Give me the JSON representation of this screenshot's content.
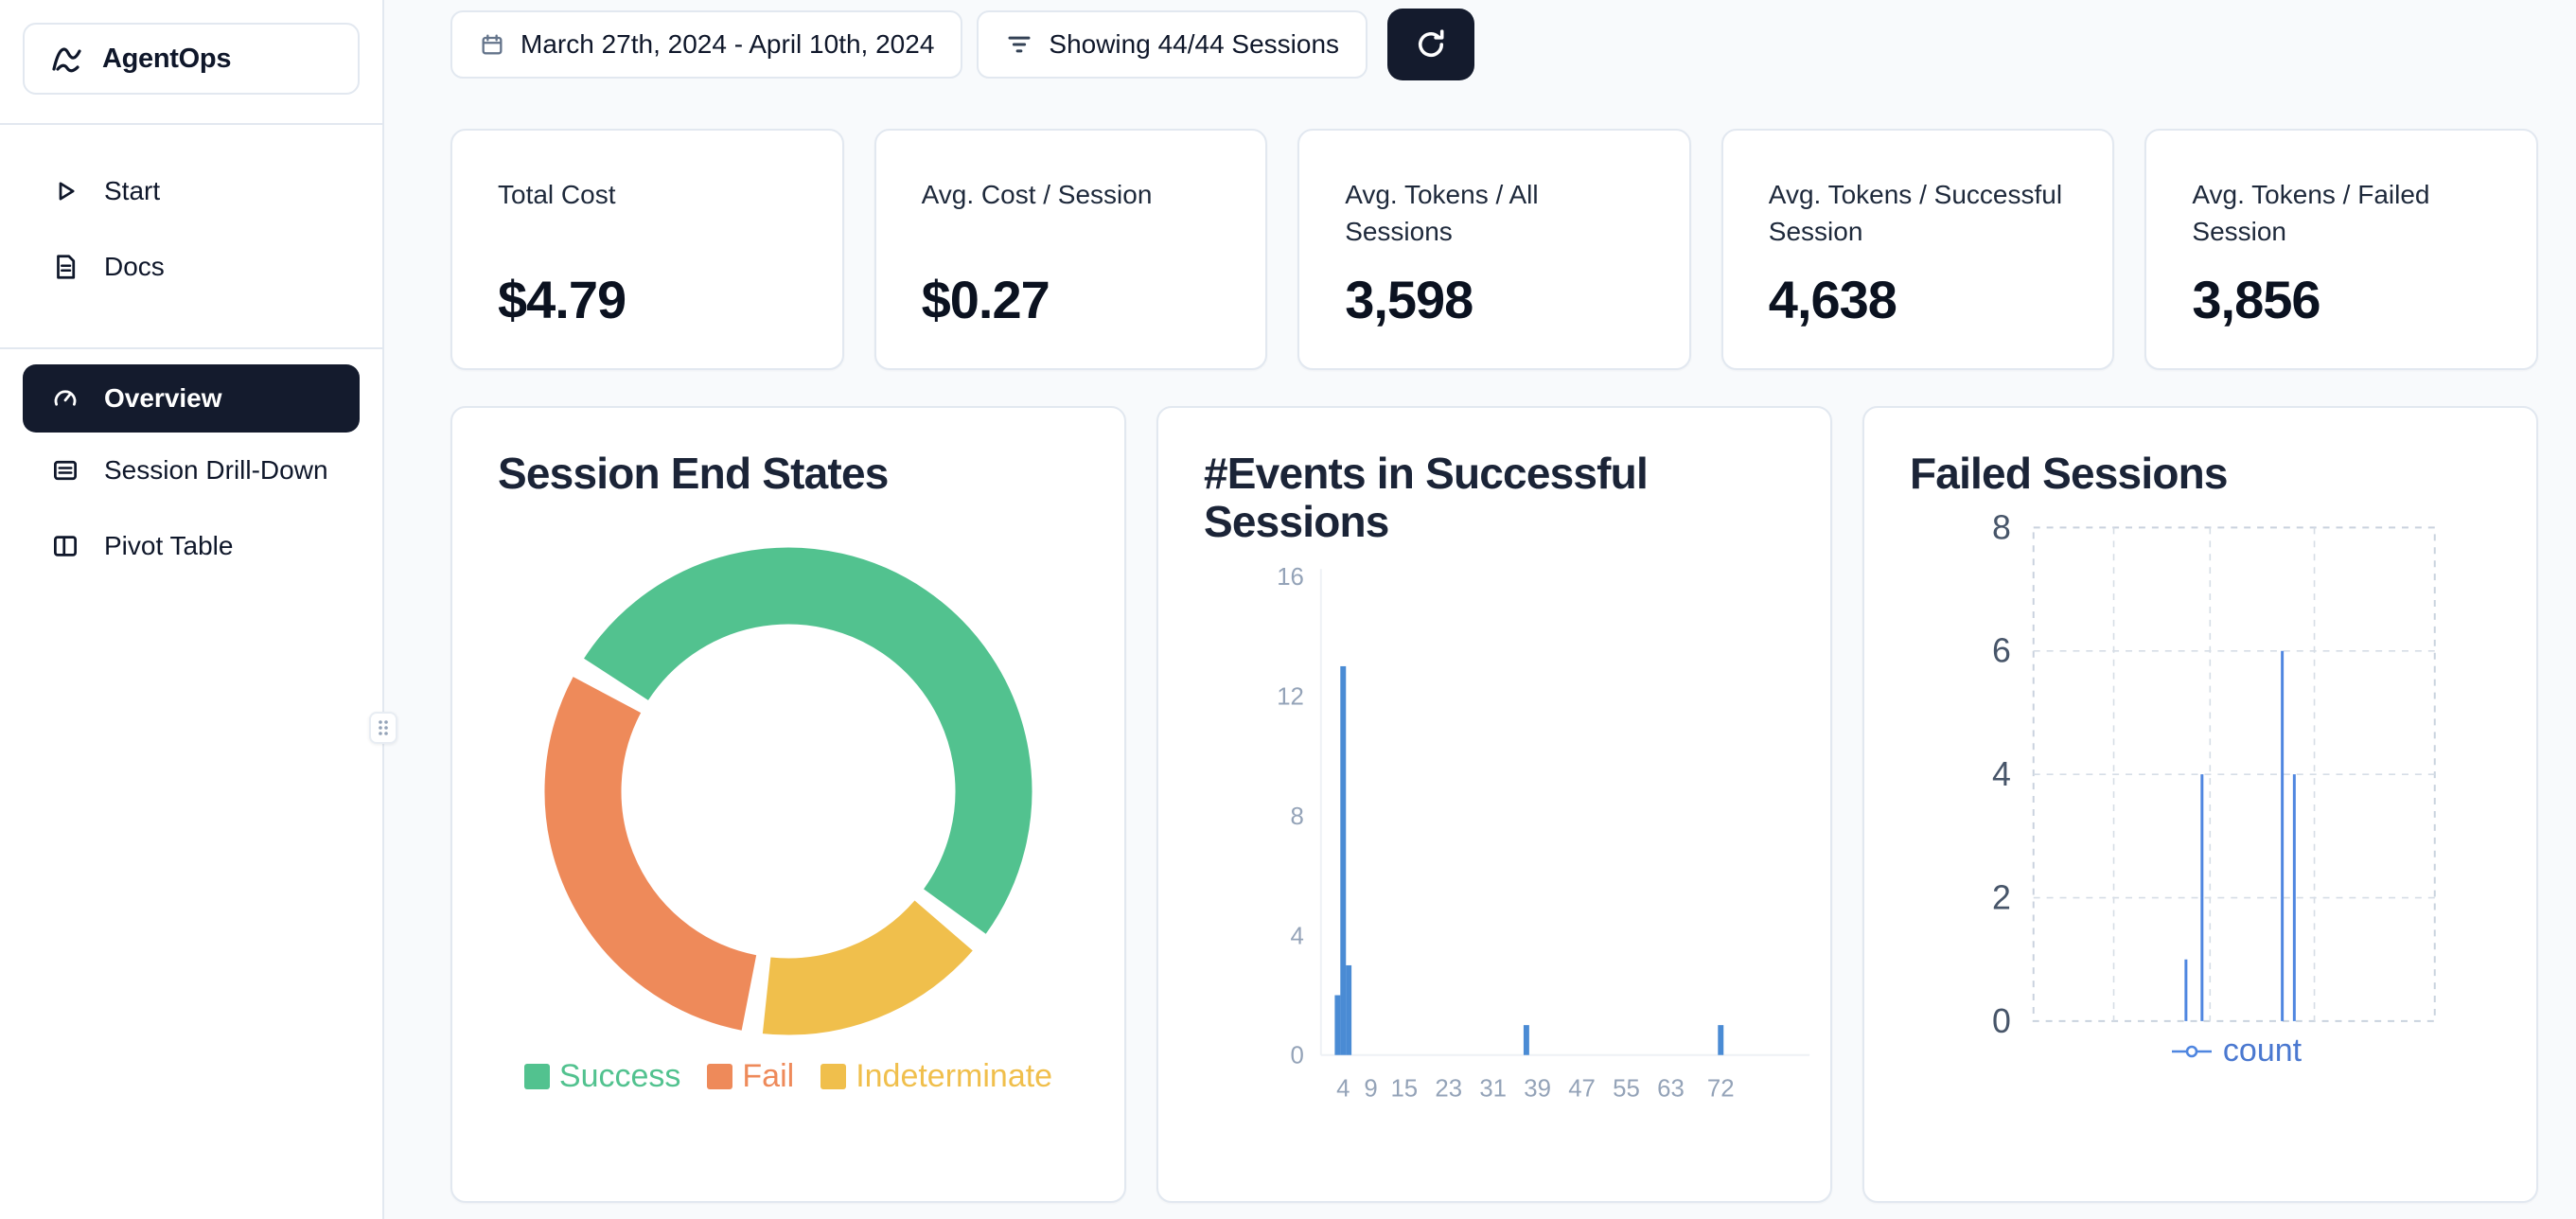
{
  "app": {
    "name": "AgentOps"
  },
  "sidebar": {
    "logo_label": "AgentOps",
    "nav_top": [
      {
        "label": "Start"
      },
      {
        "label": "Docs"
      }
    ],
    "nav_main": [
      {
        "label": "Overview",
        "active": true
      },
      {
        "label": "Session Drill-Down",
        "active": false
      },
      {
        "label": "Pivot Table",
        "active": false
      }
    ]
  },
  "topbar": {
    "date_range": "March 27th, 2024 - April 10th, 2024",
    "filter_label": "Showing 44/44 Sessions"
  },
  "stats": [
    {
      "label": "Total Cost",
      "value": "$4.79"
    },
    {
      "label": "Avg. Cost / Session",
      "value": "$0.27"
    },
    {
      "label": "Avg. Tokens / All Sessions",
      "value": "3,598"
    },
    {
      "label": "Avg. Tokens / Successful Session",
      "value": "4,638"
    },
    {
      "label": "Avg. Tokens / Failed Session",
      "value": "3,856"
    }
  ],
  "chart_data": [
    {
      "type": "pie",
      "variant": "donut",
      "title": "Session End States",
      "segments": [
        {
          "label": "Success",
          "percent": 53,
          "color": "#52c28f"
        },
        {
          "label": "Fail",
          "percent": 31,
          "color": "#ee8a5a"
        },
        {
          "label": "Indeterminate",
          "percent": 16,
          "color": "#f0bf4c"
        }
      ],
      "draw_order": [
        0,
        2,
        1
      ],
      "legend_position": "bottom"
    },
    {
      "type": "bar",
      "title": "#Events in Successful Sessions",
      "xlabel": "",
      "ylabel": "",
      "ylim": [
        0,
        16
      ],
      "yticks": [
        0,
        4,
        8,
        12,
        16
      ],
      "xlim": [
        0,
        88
      ],
      "xticks": [
        4,
        9,
        15,
        23,
        31,
        39,
        47,
        55,
        63,
        72
      ],
      "bars": [
        {
          "x": 3,
          "count": 2
        },
        {
          "x": 4,
          "count": 13
        },
        {
          "x": 5,
          "count": 3
        },
        {
          "x": 37,
          "count": 1
        },
        {
          "x": 72,
          "count": 1
        }
      ],
      "bar_color": "#4a8bd4"
    },
    {
      "type": "line",
      "title": "Failed Sessions",
      "ylim": [
        0,
        8
      ],
      "yticks": [
        0,
        2,
        4,
        6,
        8
      ],
      "spikes": [
        {
          "x_frac": 0.38,
          "count": 1
        },
        {
          "x_frac": 0.42,
          "count": 4
        },
        {
          "x_frac": 0.62,
          "count": 6
        },
        {
          "x_frac": 0.65,
          "count": 4
        }
      ],
      "line_color": "#4f86e0",
      "legend": "count",
      "grid": "dashed"
    }
  ],
  "colors": {
    "accent_dark": "#141b2d",
    "background": "#f8fafc",
    "card_border": "#e2e8f0",
    "success": "#52c28f",
    "fail": "#ee8a5a",
    "indeterminate": "#f0bf4c",
    "bar_blue": "#4a8bd4",
    "line_blue": "#4f86e0"
  }
}
